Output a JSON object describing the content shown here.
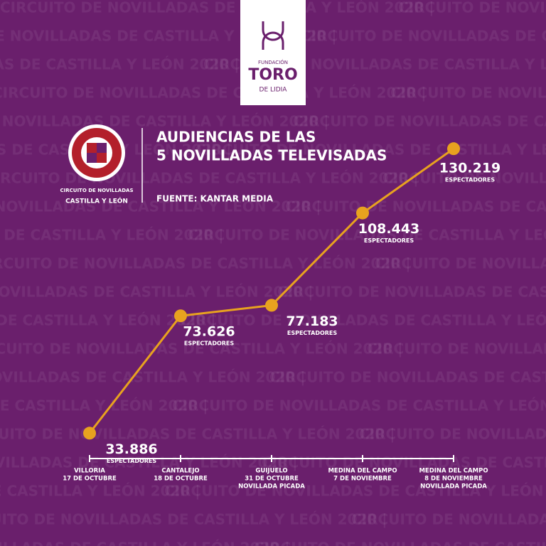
{
  "chart_data": {
    "type": "line",
    "title": [
      "AUDIENCIAS DE LAS",
      "5 NOVILLADAS TELEVISADAS"
    ],
    "source": "FUENTE: KANTAR MEDIA",
    "categories": [
      [
        "VILLORIA",
        "17 DE OCTUBRE"
      ],
      [
        "CANTALEJO",
        "18 DE OCTUBRE"
      ],
      [
        "GUIJUELO",
        "31 DE OCTUBRE",
        "NOVILLADA PICADA"
      ],
      [
        "MEDINA DEL CAMPO",
        "7 DE NOVIEMBRE"
      ],
      [
        "MEDINA DEL CAMPO",
        "8 DE NOVIEMBRE",
        "NOVILLADA PICADA"
      ]
    ],
    "values": [
      33886,
      73626,
      77183,
      108443,
      130219
    ],
    "value_labels": [
      "33.886",
      "73.626",
      "77.183",
      "108.443",
      "130.219"
    ],
    "value_unit": "ESPECTADORES",
    "color": "#e8a21f",
    "ylim": [
      0,
      150000
    ],
    "background_text": "CIRCUITO DE NOVILLADAS DE CASTILLA Y LEÓN 2020 |",
    "logos": {
      "fundacion": [
        "FUNDACIÓN",
        "TORO",
        "DE LIDIA"
      ],
      "circuito": [
        "CIRCUITO DE NOVILLADAS",
        "CASTILLA Y LEÓN"
      ]
    }
  }
}
